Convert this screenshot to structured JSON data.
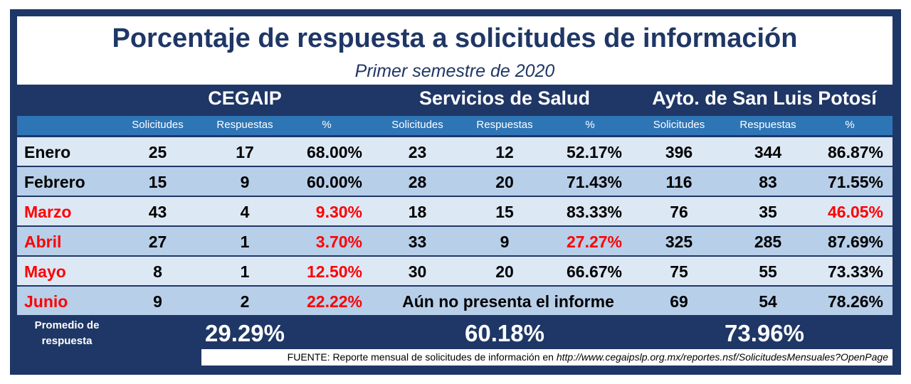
{
  "title": "Porcentaje de respuesta a solicitudes de información",
  "subtitle": "Primer semestre de 2020",
  "entities": [
    "CEGAIP",
    "Servicios de Salud",
    "Ayto. de San Luis Potosí"
  ],
  "subheaders": [
    "Solicitudes",
    "Respuestas",
    "%"
  ],
  "colors": {
    "frame": "#1f3766",
    "subheader": "#2e75b6",
    "row_light": "#dde8f5",
    "row_dark": "#b7cfe9",
    "alert": "#ff0000"
  },
  "rows": [
    {
      "month": "Enero",
      "month_alert": false,
      "cegaip": [
        "25",
        "17",
        "68.00%"
      ],
      "cegaip_alert": false,
      "salud": [
        "23",
        "12",
        "52.17%"
      ],
      "salud_alert": false,
      "salud_note": "",
      "ayto": [
        "396",
        "344",
        "86.87%"
      ],
      "ayto_alert": false
    },
    {
      "month": "Febrero",
      "month_alert": false,
      "cegaip": [
        "15",
        "9",
        "60.00%"
      ],
      "cegaip_alert": false,
      "salud": [
        "28",
        "20",
        "71.43%"
      ],
      "salud_alert": false,
      "salud_note": "",
      "ayto": [
        "116",
        "83",
        "71.55%"
      ],
      "ayto_alert": false
    },
    {
      "month": "Marzo",
      "month_alert": true,
      "cegaip": [
        "43",
        "4",
        "9.30%"
      ],
      "cegaip_alert": true,
      "salud": [
        "18",
        "15",
        "83.33%"
      ],
      "salud_alert": false,
      "salud_note": "",
      "ayto": [
        "76",
        "35",
        "46.05%"
      ],
      "ayto_alert": true
    },
    {
      "month": "Abril",
      "month_alert": true,
      "cegaip": [
        "27",
        "1",
        "3.70%"
      ],
      "cegaip_alert": true,
      "salud": [
        "33",
        "9",
        "27.27%"
      ],
      "salud_alert": true,
      "salud_note": "",
      "ayto": [
        "325",
        "285",
        "87.69%"
      ],
      "ayto_alert": false
    },
    {
      "month": "Mayo",
      "month_alert": true,
      "cegaip": [
        "8",
        "1",
        "12.50%"
      ],
      "cegaip_alert": true,
      "salud": [
        "30",
        "20",
        "66.67%"
      ],
      "salud_alert": false,
      "salud_note": "",
      "ayto": [
        "75",
        "55",
        "73.33%"
      ],
      "ayto_alert": false
    },
    {
      "month": "Junio",
      "month_alert": true,
      "cegaip": [
        "9",
        "2",
        "22.22%"
      ],
      "cegaip_alert": true,
      "salud": [
        "",
        "",
        ""
      ],
      "salud_alert": false,
      "salud_note": "Aún no presenta el informe",
      "ayto": [
        "69",
        "54",
        "78.26%"
      ],
      "ayto_alert": false
    }
  ],
  "average": {
    "label": "Promedio de respuesta",
    "values": [
      "29.29%",
      "60.18%",
      "73.96%"
    ]
  },
  "source": {
    "prefix": "FUENTE: Reporte mensual de solicitudes de información en ",
    "url": "http://www.cegaipslp.org.mx/reportes.nsf/SolicitudesMensuales?OpenPage"
  }
}
